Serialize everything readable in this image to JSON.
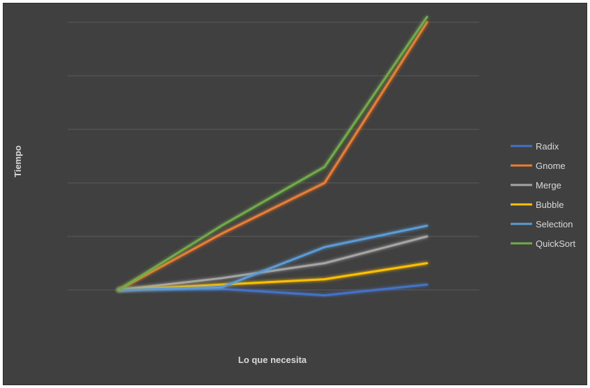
{
  "chart_data": {
    "type": "line",
    "title": "",
    "xlabel": "Lo que necesita",
    "ylabel": "Tiempo",
    "x": [
      1,
      2,
      3,
      4
    ],
    "ylim": [
      -1,
      5
    ],
    "grid": true,
    "legend_position": "right",
    "series": [
      {
        "name": "Radix",
        "color": "#4472C4",
        "values": [
          0,
          0.02,
          -0.1,
          0.1
        ]
      },
      {
        "name": "Gnome",
        "color": "#ED7D31",
        "values": [
          0,
          1.05,
          2.0,
          5.0
        ]
      },
      {
        "name": "Merge",
        "color": "#A5A5A5",
        "values": [
          0,
          0.22,
          0.5,
          1.0
        ]
      },
      {
        "name": "Bubble",
        "color": "#FFC000",
        "values": [
          0,
          0.1,
          0.2,
          0.5
        ]
      },
      {
        "name": "Selection",
        "color": "#5B9BD5",
        "values": [
          0,
          0.05,
          0.8,
          1.2
        ]
      },
      {
        "name": "QuickSort",
        "color": "#70AD47",
        "values": [
          0,
          1.2,
          2.3,
          5.1
        ]
      }
    ]
  }
}
